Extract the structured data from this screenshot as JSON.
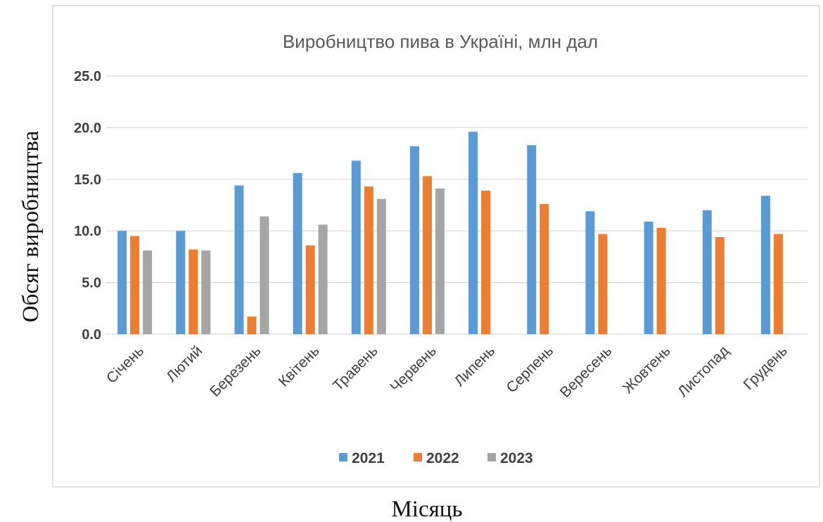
{
  "chart_data": {
    "type": "bar",
    "title": "Виробництво пива в Україні, млн дал",
    "xlabel": "Місяць",
    "ylabel": "Обсяг виробництва",
    "ylim": [
      0,
      25
    ],
    "y_ticks": [
      "0.0",
      "5.0",
      "10.0",
      "15.0",
      "20.0",
      "25.0"
    ],
    "grid": true,
    "legend_position": "bottom",
    "categories": [
      "Січень",
      "Лютий",
      "Березень",
      "Квітень",
      "Травень",
      "Червень",
      "Липень",
      "Серпень",
      "Вересень",
      "Жовтень",
      "Листопад",
      "Грудень"
    ],
    "series": [
      {
        "name": "2021",
        "color": "#5b9bd5",
        "values": [
          10.0,
          10.0,
          14.4,
          15.6,
          16.8,
          18.2,
          19.6,
          18.3,
          11.9,
          10.9,
          12.0,
          13.4
        ]
      },
      {
        "name": "2022",
        "color": "#ed7d31",
        "values": [
          9.5,
          8.2,
          1.7,
          8.6,
          14.3,
          15.3,
          13.9,
          12.6,
          9.7,
          10.3,
          9.4,
          9.7
        ]
      },
      {
        "name": "2023",
        "color": "#a5a5a5",
        "values": [
          8.1,
          8.1,
          11.4,
          10.6,
          13.1,
          14.1,
          null,
          null,
          null,
          null,
          null,
          null
        ]
      }
    ]
  }
}
